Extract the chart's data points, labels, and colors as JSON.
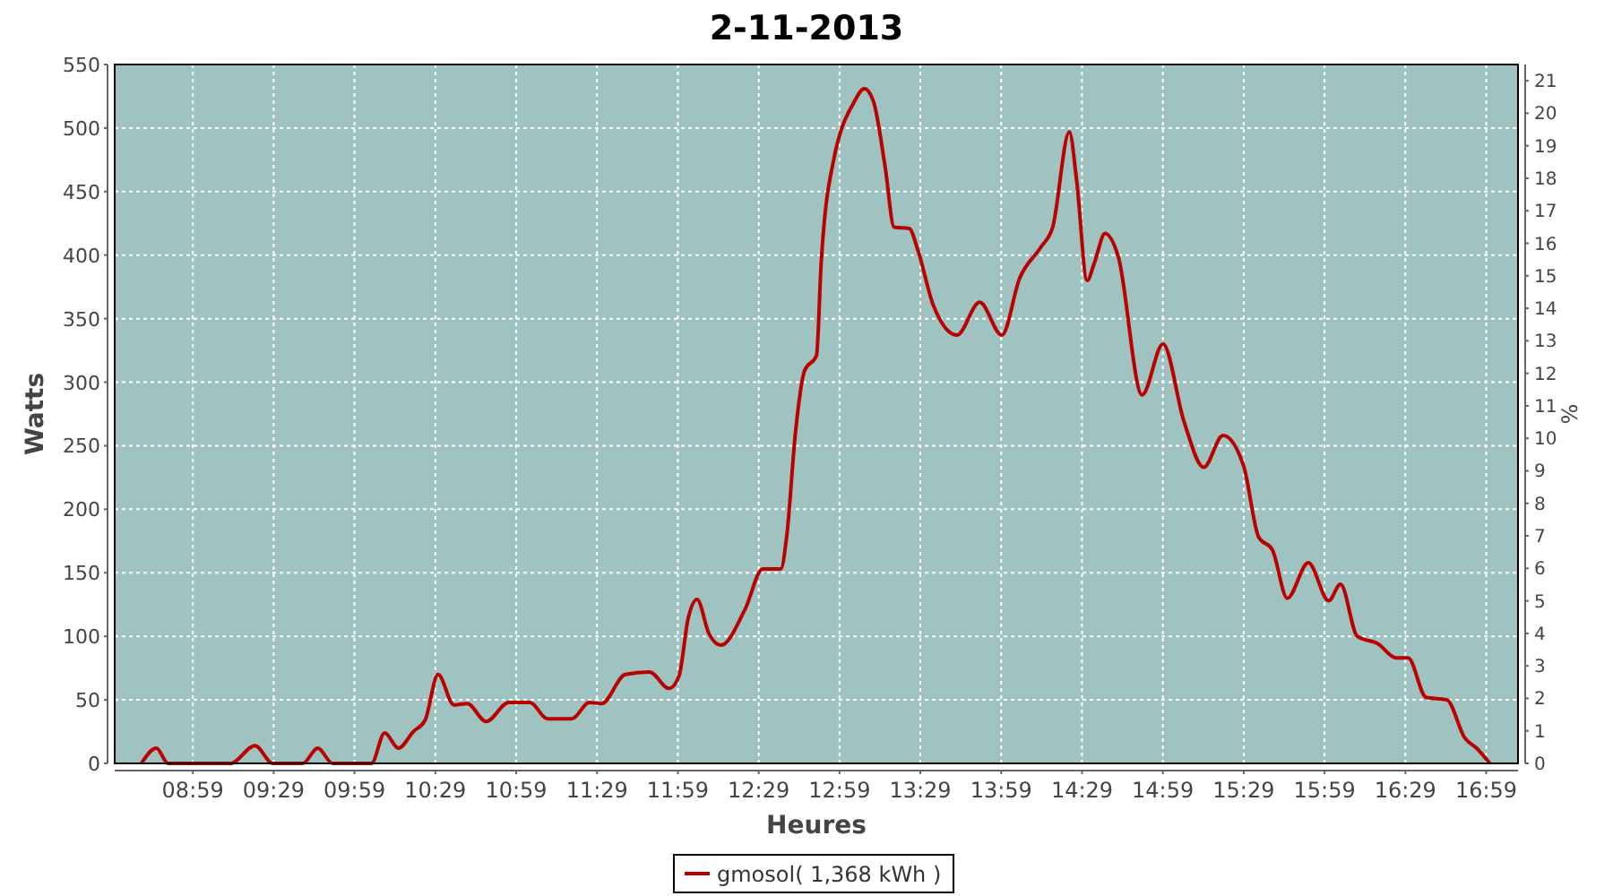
{
  "chart_data": {
    "type": "line",
    "title": "2-11-2013",
    "xlabel": "Heures",
    "ylabel": "Watts",
    "y2label": "%",
    "x": [
      8.665,
      8.758,
      8.83,
      9.216,
      9.368,
      9.478,
      9.663,
      9.756,
      9.848,
      10.088,
      10.17,
      10.255,
      10.347,
      10.42,
      10.5,
      10.598,
      10.68,
      10.798,
      10.938,
      11.068,
      11.178,
      11.326,
      11.437,
      11.511,
      11.658,
      11.807,
      11.929,
      11.991,
      12.047,
      12.102,
      12.176,
      12.25,
      12.398,
      12.509,
      12.62,
      12.656,
      12.712,
      12.767,
      12.841,
      12.87,
      12.952,
      12.99,
      13.063,
      13.137,
      13.193,
      13.266,
      13.321,
      13.414,
      13.47,
      13.562,
      13.71,
      13.85,
      13.987,
      14.098,
      14.227,
      14.302,
      14.405,
      14.449,
      14.515,
      14.56,
      14.626,
      14.707,
      14.855,
      14.984,
      15.114,
      15.236,
      15.355,
      15.483,
      15.576,
      15.661,
      15.753,
      15.883,
      16.009,
      16.082,
      16.186,
      16.315,
      16.426,
      16.5,
      16.611,
      16.74,
      16.851,
      16.924,
      17.006
    ],
    "series": [
      {
        "name": "gmosol( 1,368 kWh )",
        "color": "#bb0000",
        "values": [
          0,
          12,
          0,
          0,
          14,
          0,
          0,
          12,
          0,
          0,
          24,
          12,
          25,
          34,
          70,
          46,
          47,
          33,
          48,
          48,
          35,
          35,
          48,
          47,
          70,
          72,
          59,
          69,
          114,
          129,
          102,
          93,
          121,
          153,
          153,
          178,
          262,
          309,
          321,
          394,
          478,
          497,
          518,
          531,
          521,
          469,
          422,
          421,
          403,
          361,
          337,
          363,
          337,
          382,
          406,
          422,
          497,
          460,
          380,
          394,
          417,
          399,
          290,
          330,
          269,
          233,
          258,
          234,
          178,
          168,
          130,
          158,
          128,
          141,
          100,
          94,
          83,
          83,
          52,
          50,
          20,
          12,
          0
        ]
      }
    ],
    "xlim": [
      8.5,
      17.18
    ],
    "xticks": [
      {
        "value": 8.9833,
        "label": "08:59"
      },
      {
        "value": 9.4833,
        "label": "09:29"
      },
      {
        "value": 9.9833,
        "label": "09:59"
      },
      {
        "value": 10.4833,
        "label": "10:29"
      },
      {
        "value": 10.9833,
        "label": "10:59"
      },
      {
        "value": 11.4833,
        "label": "11:29"
      },
      {
        "value": 11.9833,
        "label": "11:59"
      },
      {
        "value": 12.4833,
        "label": "12:29"
      },
      {
        "value": 12.9833,
        "label": "12:59"
      },
      {
        "value": 13.4833,
        "label": "13:29"
      },
      {
        "value": 13.9833,
        "label": "13:59"
      },
      {
        "value": 14.4833,
        "label": "14:29"
      },
      {
        "value": 14.9833,
        "label": "14:59"
      },
      {
        "value": 15.4833,
        "label": "15:29"
      },
      {
        "value": 15.9833,
        "label": "15:59"
      },
      {
        "value": 16.4833,
        "label": "16:29"
      },
      {
        "value": 16.9833,
        "label": "16:59"
      }
    ],
    "ylim": [
      0,
      550
    ],
    "yticks": [
      0,
      50,
      100,
      150,
      200,
      250,
      300,
      350,
      400,
      450,
      500,
      550
    ],
    "y2lim": [
      0,
      21.5
    ],
    "y2ticks": [
      0,
      1,
      2,
      3,
      4,
      5,
      6,
      7,
      8,
      9,
      10,
      11,
      12,
      13,
      14,
      15,
      16,
      17,
      18,
      19,
      20,
      21
    ],
    "grid": true,
    "legend": "bottom"
  }
}
